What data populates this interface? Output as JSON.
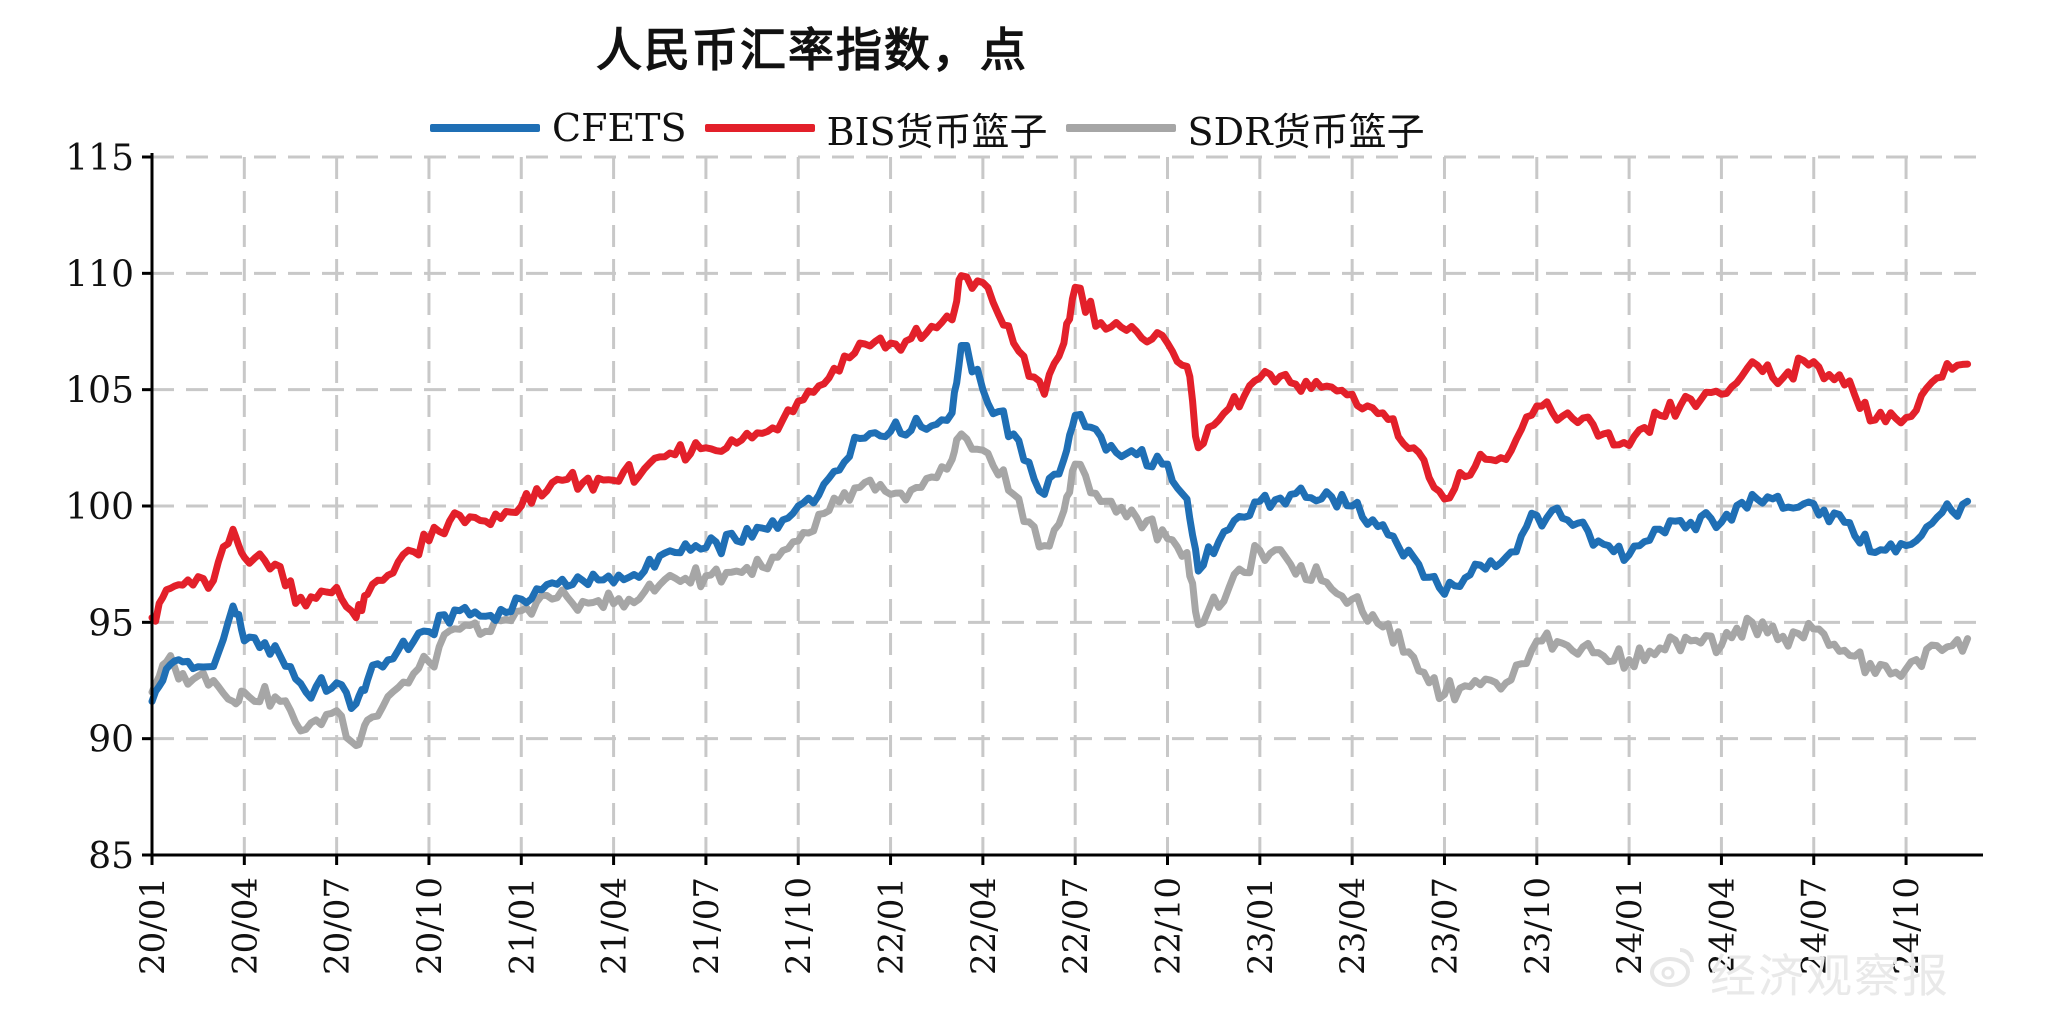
{
  "chart_data": {
    "type": "line",
    "title": "人民币汇率指数，点",
    "xlabel": "",
    "ylabel": "",
    "ylim": [
      85,
      115
    ],
    "y_ticks": [
      85,
      90,
      95,
      100,
      105,
      110,
      115
    ],
    "x_ticks": [
      "20/01",
      "20/04",
      "20/07",
      "20/10",
      "21/01",
      "21/04",
      "21/07",
      "21/10",
      "22/01",
      "22/04",
      "22/07",
      "22/10",
      "23/01",
      "23/04",
      "23/07",
      "23/10",
      "24/01",
      "24/04",
      "24/07",
      "24/10"
    ],
    "x_range": [
      "2020-01",
      "2024-12"
    ],
    "grid": true,
    "legend_position": "top",
    "series": [
      {
        "name": "CFETS",
        "color": "#1f6fb5",
        "points": [
          [
            "2020-01",
            91.6
          ],
          [
            "2020-01-15",
            93.0
          ],
          [
            "2020-02",
            93.3
          ],
          [
            "2020-03",
            93.1
          ],
          [
            "2020-03-20",
            95.7
          ],
          [
            "2020-04",
            94.2
          ],
          [
            "2020-05",
            94.0
          ],
          [
            "2020-06",
            92.0
          ],
          [
            "2020-07",
            92.4
          ],
          [
            "2020-07-20",
            91.5
          ],
          [
            "2020-08",
            92.5
          ],
          [
            "2020-09",
            93.8
          ],
          [
            "2020-10",
            94.6
          ],
          [
            "2020-11",
            95.5
          ],
          [
            "2020-12",
            95.3
          ],
          [
            "2021-01",
            96.0
          ],
          [
            "2021-02",
            96.7
          ],
          [
            "2021-03",
            96.8
          ],
          [
            "2021-04",
            96.7
          ],
          [
            "2021-05",
            97.2
          ],
          [
            "2021-06",
            98.0
          ],
          [
            "2021-07",
            98.2
          ],
          [
            "2021-08",
            98.5
          ],
          [
            "2021-09",
            99.0
          ],
          [
            "2021-10",
            100.0
          ],
          [
            "2021-11",
            101.2
          ],
          [
            "2021-12",
            102.9
          ],
          [
            "2022-01",
            103.2
          ],
          [
            "2022-02",
            103.4
          ],
          [
            "2022-03",
            104.0
          ],
          [
            "2022-03-10",
            106.9
          ],
          [
            "2022-04",
            105.0
          ],
          [
            "2022-05",
            103.1
          ],
          [
            "2022-06",
            100.5
          ],
          [
            "2022-06-20",
            102.0
          ],
          [
            "2022-07",
            103.9
          ],
          [
            "2022-08",
            102.4
          ],
          [
            "2022-09",
            102.2
          ],
          [
            "2022-10",
            101.8
          ],
          [
            "2022-10-20",
            100.3
          ],
          [
            "2022-11",
            97.2
          ],
          [
            "2022-12",
            99.0
          ],
          [
            "2023-01",
            100.2
          ],
          [
            "2023-02",
            100.5
          ],
          [
            "2023-03",
            100.3
          ],
          [
            "2023-04",
            100.0
          ],
          [
            "2023-05",
            99.2
          ],
          [
            "2023-06",
            97.8
          ],
          [
            "2023-07",
            96.2
          ],
          [
            "2023-08",
            97.5
          ],
          [
            "2023-09",
            97.8
          ],
          [
            "2023-10",
            99.6
          ],
          [
            "2023-11",
            99.4
          ],
          [
            "2023-12",
            98.5
          ],
          [
            "2024-01",
            97.9
          ],
          [
            "2024-02",
            99.0
          ],
          [
            "2024-03",
            99.3
          ],
          [
            "2024-04",
            99.3
          ],
          [
            "2024-05",
            100.5
          ],
          [
            "2024-06",
            99.9
          ],
          [
            "2024-07",
            100.1
          ],
          [
            "2024-08",
            99.3
          ],
          [
            "2024-09",
            98.0
          ],
          [
            "2024-10",
            98.3
          ],
          [
            "2024-11",
            99.5
          ],
          [
            "2024-12",
            100.2
          ]
        ]
      },
      {
        "name": "BIS货币篮子",
        "color": "#e3202a",
        "points": [
          [
            "2020-01",
            95.2
          ],
          [
            "2020-01-15",
            96.4
          ],
          [
            "2020-02",
            96.6
          ],
          [
            "2020-03",
            96.8
          ],
          [
            "2020-03-20",
            99.0
          ],
          [
            "2020-04",
            97.8
          ],
          [
            "2020-05",
            97.5
          ],
          [
            "2020-06",
            95.7
          ],
          [
            "2020-07",
            96.5
          ],
          [
            "2020-07-20",
            95.2
          ],
          [
            "2020-08",
            96.2
          ],
          [
            "2020-09",
            97.6
          ],
          [
            "2020-10",
            98.5
          ],
          [
            "2020-11",
            99.6
          ],
          [
            "2020-12",
            99.2
          ],
          [
            "2021-01",
            100.0
          ],
          [
            "2021-02",
            101.0
          ],
          [
            "2021-03",
            101.0
          ],
          [
            "2021-04",
            101.1
          ],
          [
            "2021-05",
            101.6
          ],
          [
            "2021-06",
            102.2
          ],
          [
            "2021-07",
            102.5
          ],
          [
            "2021-08",
            102.7
          ],
          [
            "2021-09",
            103.2
          ],
          [
            "2021-10",
            104.5
          ],
          [
            "2021-11",
            105.5
          ],
          [
            "2021-12",
            107.0
          ],
          [
            "2022-01",
            107.0
          ],
          [
            "2022-02",
            107.2
          ],
          [
            "2022-03",
            108.0
          ],
          [
            "2022-03-10",
            109.9
          ],
          [
            "2022-04",
            109.6
          ],
          [
            "2022-05",
            107.0
          ],
          [
            "2022-06",
            104.8
          ],
          [
            "2022-06-20",
            107.0
          ],
          [
            "2022-07",
            109.4
          ],
          [
            "2022-08",
            107.6
          ],
          [
            "2022-09",
            107.5
          ],
          [
            "2022-10",
            107.0
          ],
          [
            "2022-10-20",
            106.0
          ],
          [
            "2022-11",
            102.5
          ],
          [
            "2022-12",
            104.2
          ],
          [
            "2023-01",
            105.5
          ],
          [
            "2023-02",
            105.3
          ],
          [
            "2023-03",
            105.1
          ],
          [
            "2023-04",
            104.8
          ],
          [
            "2023-05",
            104.0
          ],
          [
            "2023-06",
            102.5
          ],
          [
            "2023-07",
            100.3
          ],
          [
            "2023-08",
            101.7
          ],
          [
            "2023-09",
            102.0
          ],
          [
            "2023-10",
            104.3
          ],
          [
            "2023-11",
            104.0
          ],
          [
            "2023-12",
            103.0
          ],
          [
            "2024-01",
            102.6
          ],
          [
            "2024-02",
            103.9
          ],
          [
            "2024-03",
            104.6
          ],
          [
            "2024-04",
            104.8
          ],
          [
            "2024-05",
            106.2
          ],
          [
            "2024-06",
            105.5
          ],
          [
            "2024-07",
            106.2
          ],
          [
            "2024-08",
            105.2
          ],
          [
            "2024-09",
            103.7
          ],
          [
            "2024-10",
            103.8
          ],
          [
            "2024-11",
            105.5
          ],
          [
            "2024-12",
            106.1
          ]
        ]
      },
      {
        "name": "SDR货币篮子",
        "color": "#a6a6a6",
        "points": [
          [
            "2020-01",
            92.0
          ],
          [
            "2020-01-15",
            93.3
          ],
          [
            "2020-02",
            92.8
          ],
          [
            "2020-03",
            92.5
          ],
          [
            "2020-03-20",
            91.6
          ],
          [
            "2020-04",
            92.0
          ],
          [
            "2020-05",
            91.8
          ],
          [
            "2020-06",
            90.4
          ],
          [
            "2020-07",
            91.2
          ],
          [
            "2020-07-20",
            89.7
          ],
          [
            "2020-08",
            90.8
          ],
          [
            "2020-09",
            92.2
          ],
          [
            "2020-10",
            93.3
          ],
          [
            "2020-11",
            94.7
          ],
          [
            "2020-12",
            94.6
          ],
          [
            "2021-01",
            95.5
          ],
          [
            "2021-02",
            96.0
          ],
          [
            "2021-03",
            95.9
          ],
          [
            "2021-04",
            95.8
          ],
          [
            "2021-05",
            96.3
          ],
          [
            "2021-06",
            96.9
          ],
          [
            "2021-07",
            97.0
          ],
          [
            "2021-08",
            97.2
          ],
          [
            "2021-09",
            97.3
          ],
          [
            "2021-10",
            98.5
          ],
          [
            "2021-11",
            99.8
          ],
          [
            "2021-12",
            100.8
          ],
          [
            "2022-01",
            100.5
          ],
          [
            "2022-02",
            100.8
          ],
          [
            "2022-03",
            102.0
          ],
          [
            "2022-03-10",
            103.1
          ],
          [
            "2022-04",
            102.4
          ],
          [
            "2022-05",
            100.5
          ],
          [
            "2022-06",
            98.3
          ],
          [
            "2022-06-20",
            99.8
          ],
          [
            "2022-07",
            101.8
          ],
          [
            "2022-08",
            100.2
          ],
          [
            "2022-09",
            99.5
          ],
          [
            "2022-10",
            98.6
          ],
          [
            "2022-10-20",
            98.0
          ],
          [
            "2022-11",
            94.9
          ],
          [
            "2022-12",
            96.5
          ],
          [
            "2023-01",
            98.1
          ],
          [
            "2023-02",
            97.5
          ],
          [
            "2023-03",
            96.8
          ],
          [
            "2023-04",
            96.0
          ],
          [
            "2023-05",
            94.8
          ],
          [
            "2023-06",
            93.5
          ],
          [
            "2023-07",
            91.9
          ],
          [
            "2023-08",
            92.5
          ],
          [
            "2023-09",
            92.4
          ],
          [
            "2023-10",
            94.2
          ],
          [
            "2023-11",
            94.0
          ],
          [
            "2023-12",
            93.7
          ],
          [
            "2024-01",
            93.4
          ],
          [
            "2024-02",
            93.9
          ],
          [
            "2024-03",
            94.2
          ],
          [
            "2024-04",
            94.0
          ],
          [
            "2024-05",
            95.0
          ],
          [
            "2024-06",
            94.4
          ],
          [
            "2024-07",
            94.7
          ],
          [
            "2024-08",
            93.8
          ],
          [
            "2024-09",
            92.8
          ],
          [
            "2024-10",
            93.0
          ],
          [
            "2024-11",
            94.0
          ],
          [
            "2024-12",
            94.3
          ]
        ]
      }
    ]
  },
  "legend": [
    {
      "label": "CFETS",
      "color": "#1f6fb5"
    },
    {
      "label": "BIS货币篮子",
      "color": "#e3202a"
    },
    {
      "label": "SDR货币篮子",
      "color": "#a6a6a6"
    }
  ],
  "watermark": {
    "text": "经济观察报",
    "icon": "weibo-logo-icon"
  }
}
